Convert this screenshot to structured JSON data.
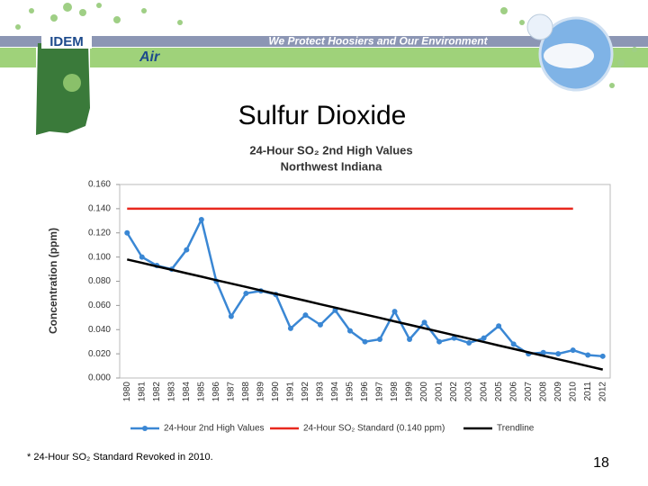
{
  "header": {
    "logo": "IDEM",
    "motto": "We Protect Hoosiers and Our Environment",
    "section": "Air"
  },
  "slide_title": "Sulfur Dioxide",
  "chart_data": {
    "type": "line",
    "title": "24-Hour SO₂ 2nd High Values",
    "subtitle": "Northwest Indiana",
    "y_label": "Concentration (ppm)",
    "categories": [
      "1980",
      "1981",
      "1982",
      "1983",
      "1984",
      "1985",
      "1986",
      "1987",
      "1988",
      "1989",
      "1990",
      "1991",
      "1992",
      "1993",
      "1994",
      "1995",
      "1996",
      "1997",
      "1998",
      "1999",
      "2000",
      "2001",
      "2002",
      "2003",
      "2004",
      "2005",
      "2006",
      "2007",
      "2008",
      "2009",
      "2010",
      "2011",
      "2012"
    ],
    "series": [
      {
        "name": "24-Hour 2nd High Values",
        "color": "#3a87d4",
        "markers": true,
        "values": [
          0.12,
          0.1,
          0.093,
          0.09,
          0.106,
          0.131,
          0.08,
          0.051,
          0.07,
          0.072,
          0.069,
          0.041,
          0.052,
          0.044,
          0.056,
          0.039,
          0.03,
          0.032,
          0.055,
          0.032,
          0.046,
          0.03,
          0.033,
          0.029,
          0.033,
          0.043,
          0.028,
          0.02,
          0.021,
          0.02,
          0.023,
          0.019,
          0.018
        ]
      },
      {
        "name": "24-Hour SO₂ Standard (0.140 ppm)",
        "color": "#e8281e",
        "markers": false,
        "values": [
          0.14,
          0.14,
          0.14,
          0.14,
          0.14,
          0.14,
          0.14,
          0.14,
          0.14,
          0.14,
          0.14,
          0.14,
          0.14,
          0.14,
          0.14,
          0.14,
          0.14,
          0.14,
          0.14,
          0.14,
          0.14,
          0.14,
          0.14,
          0.14,
          0.14,
          0.14,
          0.14,
          0.14,
          0.14,
          0.14,
          0.14,
          null,
          null
        ]
      },
      {
        "name": "Trendline",
        "color": "#000000",
        "markers": false,
        "values": [
          0.098,
          0.0952,
          0.0923,
          0.0895,
          0.0866,
          0.0838,
          0.0809,
          0.0781,
          0.0753,
          0.0724,
          0.0696,
          0.0667,
          0.0639,
          0.061,
          0.0582,
          0.0553,
          0.0525,
          0.0497,
          0.0468,
          0.044,
          0.0411,
          0.0383,
          0.0354,
          0.0326,
          0.0298,
          0.0269,
          0.0241,
          0.0212,
          0.0184,
          0.0155,
          0.0127,
          0.0098,
          0.007
        ]
      }
    ],
    "ylim": [
      0,
      0.16
    ],
    "yticks": [
      {
        "value": 0,
        "label": "0.000"
      },
      {
        "value": 0.02,
        "label": "0.020"
      },
      {
        "value": 0.04,
        "label": "0.040"
      },
      {
        "value": 0.06,
        "label": "0.060"
      },
      {
        "value": 0.08,
        "label": "0.080"
      },
      {
        "value": 0.1,
        "label": "0.100"
      },
      {
        "value": 0.12,
        "label": "0.120"
      },
      {
        "value": 0.14,
        "label": "0.140"
      },
      {
        "value": 0.16,
        "label": "0.160"
      }
    ],
    "grid": false,
    "legend": "bottom"
  },
  "footnote": "* 24-Hour SO₂ Standard Revoked in 2010.",
  "page_number": "18"
}
